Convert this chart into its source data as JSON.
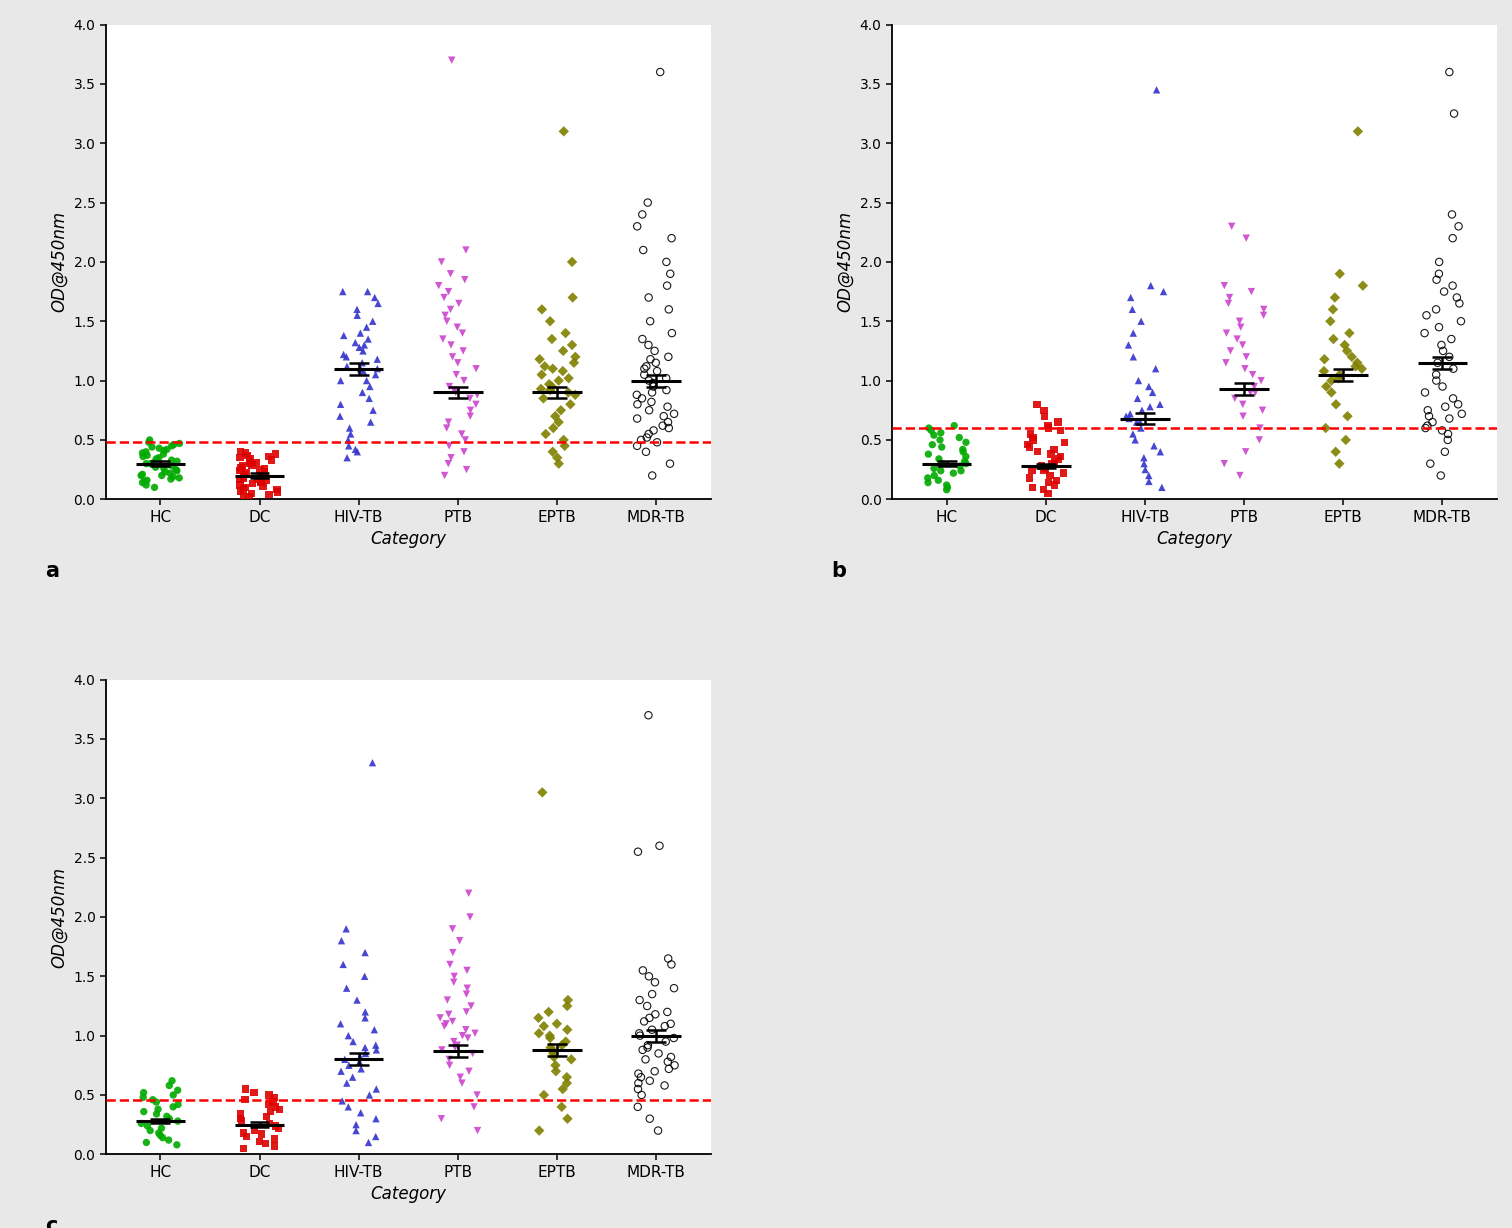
{
  "categories": [
    "HC",
    "DC",
    "HIV-TB",
    "PTB",
    "EPTB",
    "MDR-TB"
  ],
  "colors_a": [
    "#00aa00",
    "#dd0000",
    "#3333cc",
    "#cc44cc",
    "#808000",
    "#000000"
  ],
  "colors_b": [
    "#00aa00",
    "#dd0000",
    "#3333cc",
    "#cc44cc",
    "#808000",
    "#000000"
  ],
  "colors_c": [
    "#00aa00",
    "#dd0000",
    "#3333cc",
    "#cc44cc",
    "#808000",
    "#000000"
  ],
  "markers": [
    "o",
    "s",
    "^",
    "v",
    "D",
    "o"
  ],
  "marker_filled": [
    true,
    true,
    true,
    true,
    true,
    false
  ],
  "xlabel": "Category",
  "ylabel": "OD@450nm",
  "cutoff_a": 0.48,
  "cutoff_b": 0.6,
  "cutoff_c": 0.46,
  "ylim": [
    0.0,
    4.0
  ],
  "yticks": [
    0.0,
    0.5,
    1.0,
    1.5,
    2.0,
    2.5,
    3.0,
    3.5,
    4.0
  ],
  "panel_labels": [
    "a",
    "b",
    "c"
  ],
  "panel_a": {
    "HC": [
      0.1,
      0.12,
      0.14,
      0.15,
      0.16,
      0.17,
      0.18,
      0.19,
      0.2,
      0.2,
      0.21,
      0.22,
      0.23,
      0.24,
      0.25,
      0.26,
      0.27,
      0.28,
      0.29,
      0.3,
      0.3,
      0.31,
      0.32,
      0.33,
      0.34,
      0.35,
      0.36,
      0.37,
      0.38,
      0.39,
      0.4,
      0.41,
      0.42,
      0.43,
      0.44,
      0.45,
      0.46,
      0.47,
      0.48,
      0.5
    ],
    "DC": [
      0.02,
      0.03,
      0.04,
      0.05,
      0.06,
      0.07,
      0.08,
      0.09,
      0.1,
      0.11,
      0.12,
      0.13,
      0.14,
      0.15,
      0.16,
      0.17,
      0.17,
      0.18,
      0.19,
      0.2,
      0.21,
      0.22,
      0.23,
      0.24,
      0.25,
      0.26,
      0.27,
      0.28,
      0.29,
      0.3,
      0.31,
      0.32,
      0.33,
      0.34,
      0.35,
      0.36,
      0.37,
      0.38,
      0.39,
      0.4
    ],
    "HIV-TB": [
      0.35,
      0.4,
      0.42,
      0.45,
      0.5,
      0.55,
      0.6,
      0.65,
      0.7,
      0.75,
      0.8,
      0.85,
      0.9,
      0.95,
      1.0,
      1.0,
      1.05,
      1.08,
      1.1,
      1.1,
      1.12,
      1.15,
      1.18,
      1.2,
      1.22,
      1.25,
      1.28,
      1.3,
      1.32,
      1.35,
      1.38,
      1.4,
      1.45,
      1.5,
      1.55,
      1.6,
      1.65,
      1.7,
      1.75,
      1.75
    ],
    "PTB": [
      0.2,
      0.25,
      0.3,
      0.35,
      0.4,
      0.45,
      0.5,
      0.55,
      0.6,
      0.65,
      0.7,
      0.75,
      0.8,
      0.85,
      0.88,
      0.9,
      0.92,
      0.95,
      1.0,
      1.05,
      1.1,
      1.15,
      1.2,
      1.25,
      1.3,
      1.35,
      1.4,
      1.45,
      1.5,
      1.55,
      1.6,
      1.65,
      1.7,
      1.75,
      1.8,
      1.85,
      1.9,
      2.0,
      2.1,
      3.7
    ],
    "EPTB": [
      0.3,
      0.35,
      0.4,
      0.45,
      0.5,
      0.55,
      0.6,
      0.65,
      0.7,
      0.75,
      0.8,
      0.85,
      0.88,
      0.9,
      0.92,
      0.93,
      0.95,
      0.97,
      1.0,
      1.02,
      1.05,
      1.08,
      1.1,
      1.12,
      1.15,
      1.18,
      1.2,
      1.25,
      1.3,
      1.35,
      1.4,
      1.5,
      1.6,
      1.7,
      2.0,
      3.1
    ],
    "MDR-TB": [
      0.2,
      0.3,
      0.4,
      0.45,
      0.48,
      0.5,
      0.52,
      0.55,
      0.58,
      0.6,
      0.62,
      0.65,
      0.68,
      0.7,
      0.72,
      0.75,
      0.78,
      0.8,
      0.82,
      0.85,
      0.88,
      0.9,
      0.92,
      0.95,
      0.98,
      1.0,
      1.02,
      1.05,
      1.08,
      1.1,
      1.12,
      1.15,
      1.18,
      1.2,
      1.25,
      1.3,
      1.35,
      1.4,
      1.5,
      1.6,
      1.7,
      1.8,
      1.9,
      2.0,
      2.1,
      2.2,
      2.3,
      2.4,
      2.5,
      3.6
    ]
  },
  "panel_a_means": {
    "HC": 0.3,
    "DC": 0.2,
    "HIV-TB": 1.1,
    "PTB": 0.9,
    "EPTB": 0.9,
    "MDR-TB": 1.0
  },
  "panel_a_sem": {
    "HC": 0.02,
    "DC": 0.02,
    "HIV-TB": 0.05,
    "PTB": 0.05,
    "EPTB": 0.05,
    "MDR-TB": 0.05
  },
  "panel_b": {
    "HC": [
      0.08,
      0.1,
      0.12,
      0.14,
      0.16,
      0.18,
      0.2,
      0.22,
      0.24,
      0.24,
      0.26,
      0.28,
      0.3,
      0.3,
      0.32,
      0.34,
      0.36,
      0.38,
      0.4,
      0.42,
      0.44,
      0.46,
      0.48,
      0.5,
      0.52,
      0.54,
      0.56,
      0.58,
      0.6,
      0.62
    ],
    "DC": [
      0.05,
      0.08,
      0.1,
      0.12,
      0.14,
      0.16,
      0.18,
      0.2,
      0.22,
      0.24,
      0.24,
      0.26,
      0.28,
      0.3,
      0.32,
      0.34,
      0.36,
      0.38,
      0.4,
      0.42,
      0.44,
      0.46,
      0.48,
      0.5,
      0.52,
      0.55,
      0.58,
      0.6,
      0.62,
      0.65,
      0.7,
      0.75,
      0.8
    ],
    "HIV-TB": [
      0.1,
      0.15,
      0.2,
      0.25,
      0.3,
      0.35,
      0.4,
      0.45,
      0.5,
      0.55,
      0.6,
      0.65,
      0.65,
      0.68,
      0.7,
      0.72,
      0.75,
      0.78,
      0.8,
      0.85,
      0.9,
      0.95,
      1.0,
      1.1,
      1.2,
      1.3,
      1.4,
      1.5,
      1.6,
      1.7,
      1.75,
      1.8,
      3.45
    ],
    "PTB": [
      0.2,
      0.3,
      0.4,
      0.5,
      0.6,
      0.7,
      0.75,
      0.8,
      0.85,
      0.9,
      0.9,
      0.95,
      1.0,
      1.05,
      1.1,
      1.15,
      1.2,
      1.25,
      1.3,
      1.35,
      1.4,
      1.45,
      1.5,
      1.55,
      1.6,
      1.65,
      1.7,
      1.75,
      1.8,
      2.2,
      2.3
    ],
    "EPTB": [
      0.3,
      0.4,
      0.5,
      0.6,
      0.7,
      0.8,
      0.9,
      0.95,
      1.0,
      1.02,
      1.05,
      1.08,
      1.1,
      1.12,
      1.15,
      1.18,
      1.2,
      1.25,
      1.3,
      1.35,
      1.4,
      1.5,
      1.6,
      1.7,
      1.8,
      1.9,
      3.1
    ],
    "MDR-TB": [
      0.2,
      0.3,
      0.4,
      0.5,
      0.55,
      0.58,
      0.6,
      0.62,
      0.65,
      0.68,
      0.7,
      0.72,
      0.75,
      0.78,
      0.8,
      0.85,
      0.9,
      0.95,
      1.0,
      1.05,
      1.1,
      1.15,
      1.2,
      1.25,
      1.3,
      1.35,
      1.4,
      1.45,
      1.5,
      1.55,
      1.6,
      1.65,
      1.7,
      1.75,
      1.8,
      1.85,
      1.9,
      2.0,
      2.2,
      2.3,
      2.4,
      3.25,
      3.6
    ]
  },
  "panel_b_means": {
    "HC": 0.3,
    "DC": 0.28,
    "HIV-TB": 0.68,
    "PTB": 0.93,
    "EPTB": 1.05,
    "MDR-TB": 1.15
  },
  "panel_b_sem": {
    "HC": 0.02,
    "DC": 0.02,
    "HIV-TB": 0.05,
    "PTB": 0.05,
    "EPTB": 0.05,
    "MDR-TB": 0.05
  },
  "panel_c": {
    "HC": [
      0.08,
      0.1,
      0.12,
      0.14,
      0.16,
      0.18,
      0.2,
      0.22,
      0.24,
      0.26,
      0.28,
      0.3,
      0.32,
      0.34,
      0.36,
      0.38,
      0.4,
      0.42,
      0.44,
      0.46,
      0.48,
      0.5,
      0.52,
      0.54,
      0.58,
      0.62
    ],
    "DC": [
      0.05,
      0.07,
      0.09,
      0.11,
      0.13,
      0.15,
      0.17,
      0.18,
      0.2,
      0.22,
      0.24,
      0.26,
      0.28,
      0.3,
      0.32,
      0.34,
      0.36,
      0.38,
      0.4,
      0.42,
      0.44,
      0.46,
      0.48,
      0.5,
      0.52,
      0.55
    ],
    "HIV-TB": [
      0.1,
      0.15,
      0.2,
      0.25,
      0.3,
      0.35,
      0.4,
      0.45,
      0.5,
      0.55,
      0.6,
      0.65,
      0.7,
      0.72,
      0.75,
      0.78,
      0.8,
      0.82,
      0.85,
      0.88,
      0.9,
      0.92,
      0.95,
      1.0,
      1.05,
      1.1,
      1.15,
      1.2,
      1.3,
      1.4,
      1.5,
      1.6,
      1.7,
      1.8,
      1.9,
      3.3
    ],
    "PTB": [
      0.2,
      0.3,
      0.4,
      0.5,
      0.6,
      0.65,
      0.7,
      0.75,
      0.8,
      0.85,
      0.88,
      0.9,
      0.92,
      0.95,
      0.98,
      1.0,
      1.02,
      1.05,
      1.08,
      1.1,
      1.12,
      1.15,
      1.18,
      1.2,
      1.25,
      1.3,
      1.35,
      1.4,
      1.45,
      1.5,
      1.55,
      1.6,
      1.7,
      1.8,
      1.9,
      2.0,
      2.2
    ],
    "EPTB": [
      0.2,
      0.3,
      0.4,
      0.5,
      0.55,
      0.6,
      0.65,
      0.7,
      0.75,
      0.8,
      0.82,
      0.85,
      0.88,
      0.9,
      0.92,
      0.95,
      0.98,
      1.0,
      1.02,
      1.05,
      1.08,
      1.1,
      1.15,
      1.2,
      1.25,
      1.3,
      3.05
    ],
    "MDR-TB": [
      0.2,
      0.3,
      0.4,
      0.5,
      0.55,
      0.58,
      0.6,
      0.62,
      0.65,
      0.68,
      0.7,
      0.72,
      0.75,
      0.78,
      0.8,
      0.82,
      0.85,
      0.88,
      0.9,
      0.92,
      0.95,
      0.98,
      1.0,
      1.02,
      1.05,
      1.08,
      1.1,
      1.12,
      1.15,
      1.18,
      1.2,
      1.25,
      1.3,
      1.35,
      1.4,
      1.45,
      1.5,
      1.55,
      1.6,
      1.65,
      2.55,
      2.6,
      3.7
    ]
  },
  "panel_c_means": {
    "HC": 0.28,
    "DC": 0.25,
    "HIV-TB": 0.8,
    "PTB": 0.87,
    "EPTB": 0.88,
    "MDR-TB": 1.0
  },
  "panel_c_sem": {
    "HC": 0.02,
    "DC": 0.02,
    "HIV-TB": 0.05,
    "PTB": 0.05,
    "EPTB": 0.05,
    "MDR-TB": 0.05
  },
  "background_color": "#ffffff",
  "outer_bg": "#e8e8e8",
  "fig_width": 15.12,
  "fig_height": 12.28,
  "dpi": 100
}
